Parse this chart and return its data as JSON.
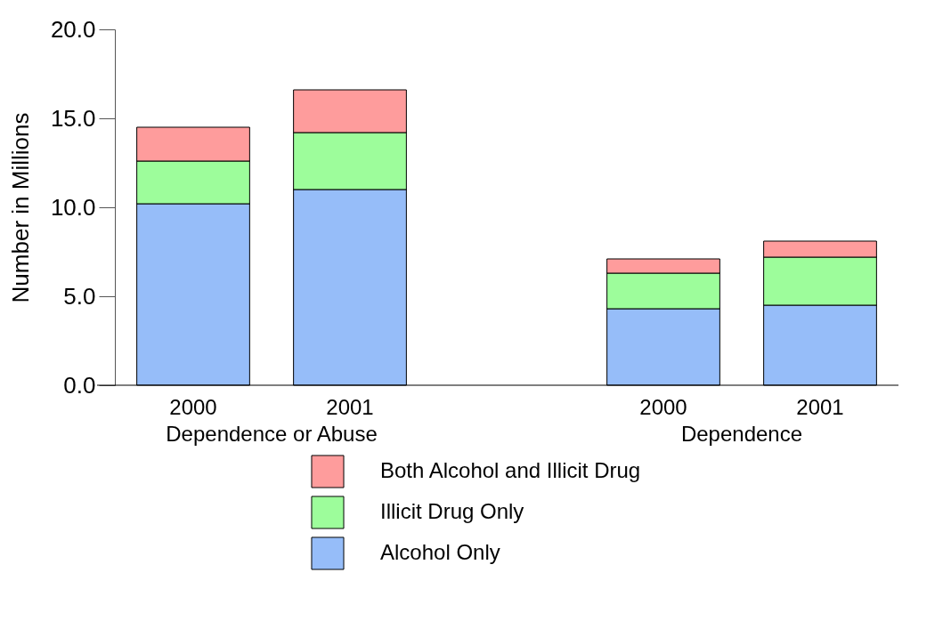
{
  "chart_data": {
    "type": "bar",
    "stacked": true,
    "ylabel": "Number in Millions",
    "categories": [
      "2000",
      "2001",
      "2000",
      "2001"
    ],
    "annotations": [
      "Dependence or Abuse",
      "Dependence"
    ],
    "series": [
      {
        "name": "Alcohol Only",
        "color": "#96bdf9",
        "values": [
          10.2,
          11.0,
          4.3,
          4.5
        ]
      },
      {
        "name": "Illicit Drug Only",
        "color": "#9dfd9b",
        "values": [
          2.4,
          3.2,
          2.0,
          2.7
        ]
      },
      {
        "name": "Both Alcohol and Illicit Drug",
        "color": "#fe9c9c",
        "values": [
          1.9,
          2.4,
          0.8,
          0.9
        ]
      }
    ],
    "ylim": [
      0,
      20
    ],
    "yticks": [
      {
        "value": 0,
        "label": "0.0"
      },
      {
        "value": 5,
        "label": "5.0"
      },
      {
        "value": 10,
        "label": "10.0"
      },
      {
        "value": 15,
        "label": "15.0"
      },
      {
        "value": 20,
        "label": "20.0"
      }
    ],
    "grid": false,
    "legend": "bottom"
  }
}
